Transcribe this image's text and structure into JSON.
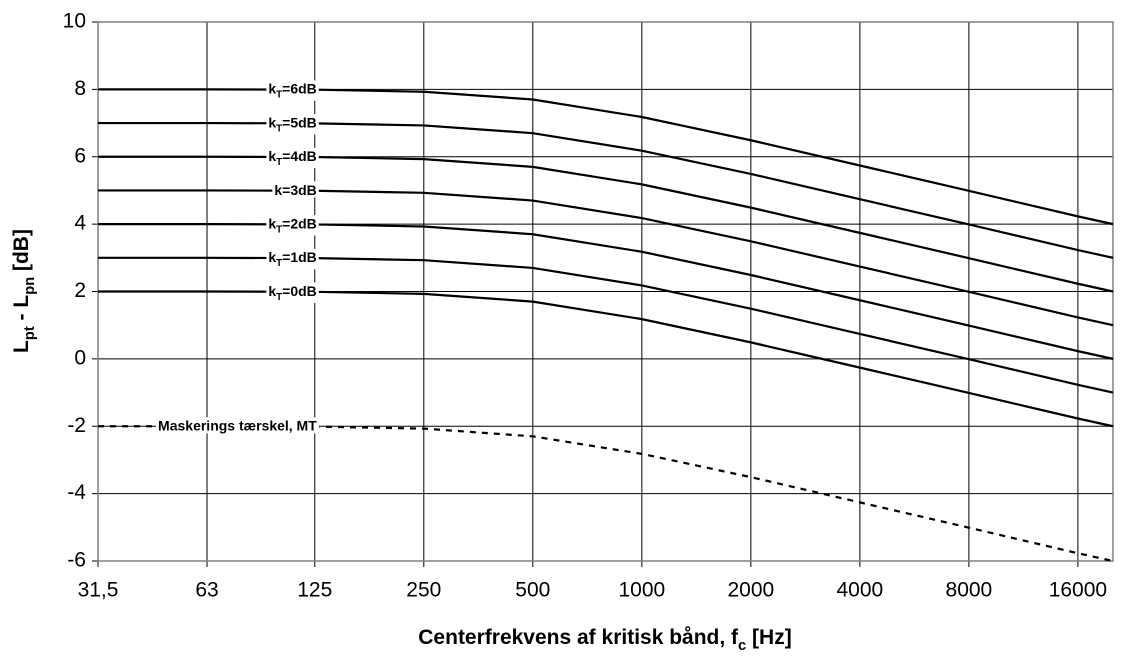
{
  "chart_data": {
    "type": "line",
    "x_label": "Centerfrekvens af kritisk bånd, fc [Hz]",
    "y_label": "Lpt - Lpn [dB]",
    "x": [
      31.5,
      63,
      125,
      250,
      500,
      1000,
      2000,
      4000,
      8000,
      16000,
      20000
    ],
    "x_log": true,
    "xlim": [
      31.5,
      20000
    ],
    "xticks": [
      {
        "value": 31.5,
        "label": "31,5"
      },
      63,
      125,
      250,
      500,
      1000,
      2000,
      4000,
      8000,
      16000
    ],
    "ylim": [
      -6,
      10
    ],
    "yticks": [
      -6,
      -4,
      -2,
      0,
      2,
      4,
      6,
      8,
      10
    ],
    "grid": true,
    "series": [
      {
        "name": "kT=6dB",
        "color": "#000000",
        "line_style": "solid",
        "values": [
          8,
          8,
          7.99,
          7.93,
          7.7,
          7.18,
          6.49,
          5.74,
          4.99,
          4.23,
          4.0
        ]
      },
      {
        "name": "kT=5dB",
        "color": "#000000",
        "line_style": "solid",
        "values": [
          7,
          7,
          6.99,
          6.93,
          6.7,
          6.18,
          5.49,
          4.74,
          3.99,
          3.23,
          3.0
        ]
      },
      {
        "name": "kT=4dB",
        "color": "#000000",
        "line_style": "solid",
        "values": [
          6,
          6,
          5.99,
          5.93,
          5.7,
          5.18,
          4.49,
          3.74,
          2.99,
          2.23,
          2.0
        ]
      },
      {
        "name": "k=3dB",
        "color": "#000000",
        "line_style": "solid",
        "values": [
          5,
          5,
          4.99,
          4.93,
          4.7,
          4.18,
          3.49,
          2.74,
          1.99,
          1.23,
          1.0
        ]
      },
      {
        "name": "kT=2dB",
        "color": "#000000",
        "line_style": "solid",
        "values": [
          4,
          4,
          3.99,
          3.93,
          3.7,
          3.18,
          2.49,
          1.74,
          0.99,
          0.23,
          0.0
        ]
      },
      {
        "name": "kT=1dB",
        "color": "#000000",
        "line_style": "solid",
        "values": [
          3,
          3,
          2.99,
          2.93,
          2.7,
          2.18,
          1.49,
          0.74,
          -0.01,
          -0.77,
          -1.0
        ]
      },
      {
        "name": "kT=0dB",
        "color": "#000000",
        "line_style": "solid",
        "values": [
          2,
          2,
          1.99,
          1.93,
          1.7,
          1.18,
          0.49,
          -0.26,
          -1.01,
          -1.77,
          -2.0
        ]
      },
      {
        "name": "Maskerings tærskel, MT",
        "color": "#000000",
        "line_style": "dashed",
        "values": [
          -2,
          -2,
          -2.01,
          -2.07,
          -2.3,
          -2.82,
          -3.51,
          -4.26,
          -5.01,
          -5.77,
          -6.0
        ]
      }
    ]
  }
}
